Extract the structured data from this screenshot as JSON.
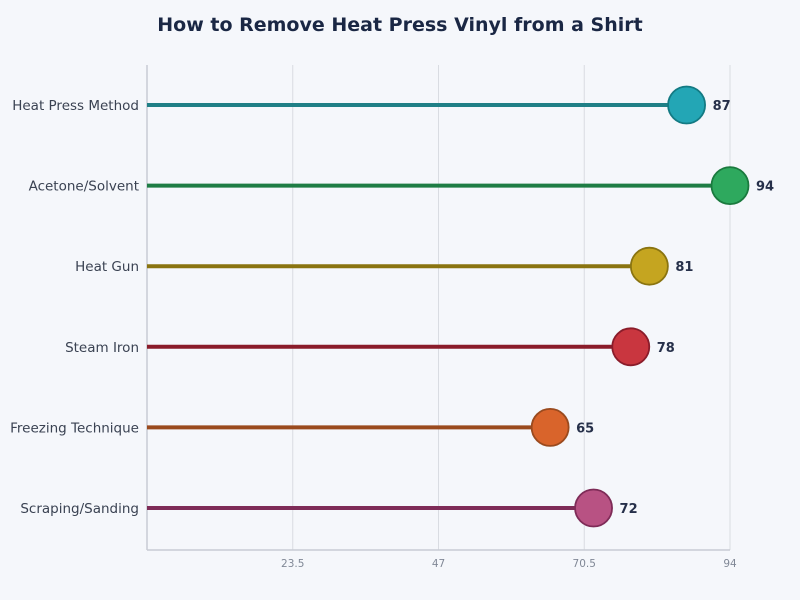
{
  "chart_data": {
    "type": "lollipop",
    "title": "How to Remove Heat Press Vinyl from a Shirt",
    "xlabel": "",
    "ylabel": "",
    "xlim": [
      0,
      94
    ],
    "x_ticks": [
      "23.5",
      "47",
      "70.5",
      "94"
    ],
    "grid": true,
    "categories": [
      "Heat Press Method",
      "Acetone/Solvent",
      "Heat Gun",
      "Steam Iron",
      "Freezing Technique",
      "Scraping/Sanding"
    ],
    "values": [
      87,
      94,
      81,
      78,
      65,
      72
    ],
    "colors": [
      {
        "line": "#1f7f86",
        "fill": "#23a6b5",
        "stroke": "#137a83"
      },
      {
        "line": "#1e7d45",
        "fill": "#2ea95e",
        "stroke": "#1a7a3e"
      },
      {
        "line": "#8a7410",
        "fill": "#c5a520",
        "stroke": "#8a7410"
      },
      {
        "line": "#8a1c2a",
        "fill": "#c9363f",
        "stroke": "#8a1c2a"
      },
      {
        "line": "#9a4a1e",
        "fill": "#d9642b",
        "stroke": "#9a4a1e"
      },
      {
        "line": "#7e2b57",
        "fill": "#b85283",
        "stroke": "#7e2b57"
      }
    ]
  }
}
